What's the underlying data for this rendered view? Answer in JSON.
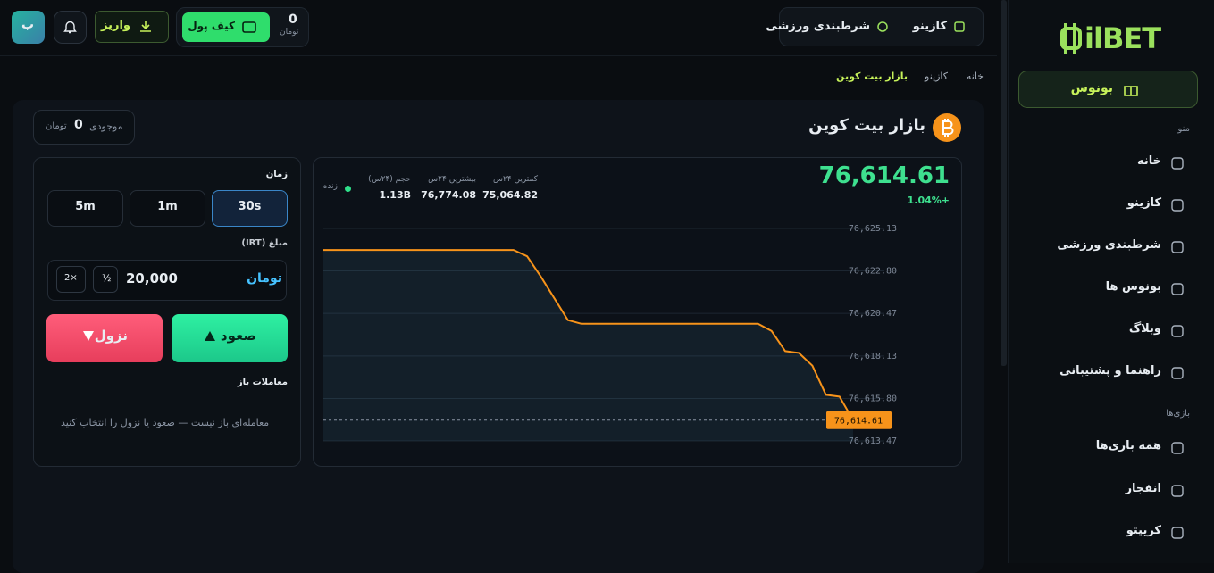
{
  "sidebar": {
    "logo": "ilBET",
    "bonus_button": "بونوس",
    "menu_heading": "منو",
    "menu": [
      "خانه",
      "کازینو",
      "شرطبندی ورزشی",
      "بونوس ها",
      "وبلاگ",
      "راهنما و پشتیبانی"
    ],
    "games_heading": "بازی‌ها",
    "games": [
      "همه بازی‌ها",
      "انفجار",
      "کریپتو"
    ]
  },
  "topbar": {
    "nav": [
      "کازینو",
      "شرطبندی ورزشی"
    ],
    "balance": "0",
    "balance_unit": "تومان",
    "wallet_button": "کیف پول",
    "deposit_button": "واریز",
    "avatar": "ب"
  },
  "breadcrumb": [
    "خانه",
    "کازینو",
    "بازار بیت کوین"
  ],
  "page_title": "بازار بیت کوین",
  "account": {
    "label": "موجودی",
    "value": "0",
    "unit": "تومان"
  },
  "market": {
    "change": "+1.04%",
    "live": "زنده",
    "stats": [
      {
        "label": "کمترین ۲۴س",
        "value": "75,064.82"
      },
      {
        "label": "بیشترین ۲۴س",
        "value": "76,774.08"
      },
      {
        "label": "حجم (۲۴س)",
        "value": "1.13B"
      }
    ]
  },
  "trade_panel": {
    "time_label": "زمان",
    "durations": [
      "30s",
      "1m",
      "5m"
    ],
    "amount_label": "مبلغ (IRT)",
    "amount": "20,000",
    "amount_unit": "تومان",
    "half_button": "½",
    "double_button": "2×",
    "up_button": "صعود",
    "down_button": "نزول",
    "open_trades_label": "معاملات باز",
    "open_trades_empty": "معامله‌ای باز نیست — صعود یا نزول را انتخاب کنید"
  },
  "chart_data": {
    "type": "line",
    "categories": [
      null,
      null,
      null,
      null,
      null,
      null,
      null,
      null,
      null,
      null,
      null,
      null,
      null,
      null,
      null,
      null,
      null,
      null,
      null,
      null,
      null,
      null,
      null,
      null,
      null,
      null,
      null,
      null,
      null,
      null,
      null,
      null,
      null,
      null,
      null,
      null,
      null,
      null,
      null,
      null
    ],
    "series": [
      {
        "color": "#f7931a",
        "values": [
          76623.95,
          76623.95,
          76623.95,
          76623.95,
          76623.95,
          76623.95,
          76623.95,
          76623.95,
          76623.95,
          76623.95,
          76623.95,
          76623.95,
          76623.95,
          76623.95,
          76623.95,
          76623.6,
          76622.5,
          76621.3,
          76620.1,
          76619.9,
          76619.9,
          76619.9,
          76619.9,
          76619.9,
          76619.9,
          76619.9,
          76619.9,
          76619.9,
          76619.9,
          76619.9,
          76619.9,
          76619.9,
          76619.9,
          76619.5,
          76618.4,
          76618.3,
          76617.6,
          76616.0,
          76615.9,
          76614.61
        ]
      }
    ],
    "current_price": {
      "value": 76614.61,
      "label": "76,614.61"
    },
    "ylim": [
      76613.47,
      76625.13
    ],
    "yticks": [
      {
        "value": 76625.13,
        "label": "76,625.13"
      },
      {
        "value": 76622.8,
        "label": "76,622.80"
      },
      {
        "value": 76620.47,
        "label": "76,620.47"
      },
      {
        "value": 76618.13,
        "label": "76,618.13"
      },
      {
        "value": 76615.8,
        "label": "76,615.80"
      },
      {
        "value": 76613.47,
        "label": "76,613.47"
      }
    ],
    "grid": true
  }
}
